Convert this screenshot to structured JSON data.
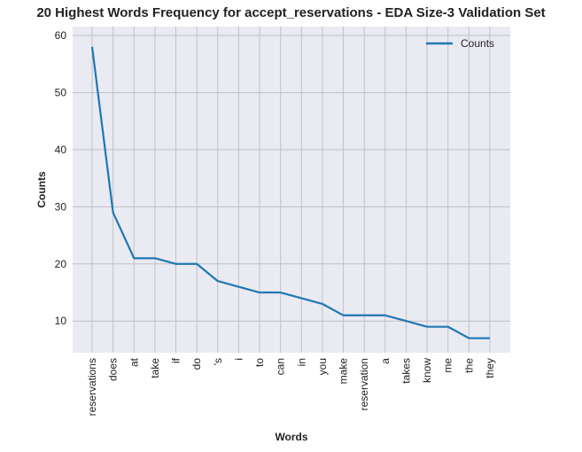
{
  "chart_data": {
    "type": "line",
    "title": "20 Highest Words Frequency for accept_reservations - EDA Size-3 Validation Set",
    "xlabel": "Words",
    "ylabel": "Counts",
    "categories": [
      "reservations",
      "does",
      "at",
      "take",
      "if",
      "do",
      "'s",
      "i",
      "to",
      "can",
      "in",
      "you",
      "make",
      "reservation",
      "a",
      "takes",
      "know",
      "me",
      "the",
      "they"
    ],
    "series": [
      {
        "name": "Counts",
        "values": [
          58,
          29,
          21,
          21,
          20,
          20,
          17,
          16,
          15,
          15,
          14,
          13,
          11,
          11,
          11,
          10,
          9,
          9,
          7,
          7
        ]
      }
    ],
    "yticks": [
      10,
      20,
      30,
      40,
      50,
      60
    ],
    "ylim": [
      4.45,
      61.55
    ],
    "grid": true,
    "legend": "top-right",
    "colors": {
      "line": "#1f77b4",
      "plot_bg": "#eaeaf2",
      "grid": "#c0c0c8"
    }
  }
}
